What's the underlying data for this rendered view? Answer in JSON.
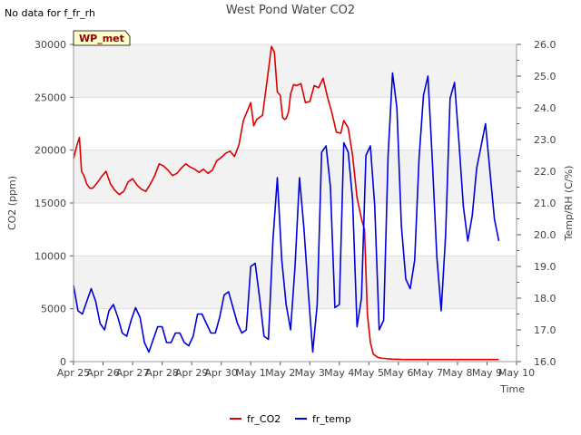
{
  "no_data_note": "No data for f_fr_rh",
  "station_badge": "WP_met",
  "chart_data": {
    "type": "line",
    "title": "West Pond Water CO2",
    "xlabel": "Time",
    "ylabel": "CO2 (ppm)",
    "y2label": "Temp/RH (C/%)",
    "xlim": [
      0,
      15
    ],
    "ylim": [
      0,
      30000
    ],
    "y2lim": [
      16.0,
      26.0
    ],
    "x_ticks": [
      {
        "value": 0,
        "label": "Apr 25"
      },
      {
        "value": 1,
        "label": "Apr 26"
      },
      {
        "value": 2,
        "label": "Apr 27"
      },
      {
        "value": 3,
        "label": "Apr 28"
      },
      {
        "value": 4,
        "label": "Apr 29"
      },
      {
        "value": 5,
        "label": "Apr 30"
      },
      {
        "value": 6,
        "label": "May 1"
      },
      {
        "value": 7,
        "label": "May 2"
      },
      {
        "value": 8,
        "label": "May 3"
      },
      {
        "value": 9,
        "label": "May 4"
      },
      {
        "value": 10,
        "label": "May 5"
      },
      {
        "value": 11,
        "label": "May 6"
      },
      {
        "value": 12,
        "label": "May 7"
      },
      {
        "value": 13,
        "label": "May 8"
      },
      {
        "value": 14,
        "label": "May 9"
      },
      {
        "value": 15,
        "label": "May 10"
      }
    ],
    "y_ticks": [
      {
        "value": 0,
        "label": "0"
      },
      {
        "value": 5000,
        "label": "5000"
      },
      {
        "value": 10000,
        "label": "10000"
      },
      {
        "value": 15000,
        "label": "15000"
      },
      {
        "value": 20000,
        "label": "20000"
      },
      {
        "value": 25000,
        "label": "25000"
      },
      {
        "value": 30000,
        "label": "30000"
      }
    ],
    "y2_ticks": [
      {
        "value": 16.0,
        "label": "16.0"
      },
      {
        "value": 17.0,
        "label": "17.0"
      },
      {
        "value": 18.0,
        "label": "18.0"
      },
      {
        "value": 19.0,
        "label": "19.0"
      },
      {
        "value": 20.0,
        "label": "20.0"
      },
      {
        "value": 21.0,
        "label": "21.0"
      },
      {
        "value": 22.0,
        "label": "22.0"
      },
      {
        "value": 23.0,
        "label": "23.0"
      },
      {
        "value": 24.0,
        "label": "24.0"
      },
      {
        "value": 25.0,
        "label": "25.0"
      },
      {
        "value": 26.0,
        "label": "26.0"
      }
    ],
    "series": [
      {
        "name": "fr_CO2",
        "color": "#dd0000",
        "axis": "left",
        "x": [
          0.0,
          0.12,
          0.2,
          0.27,
          0.35,
          0.45,
          0.55,
          0.65,
          0.8,
          0.95,
          1.1,
          1.25,
          1.4,
          1.55,
          1.7,
          1.85,
          2.0,
          2.15,
          2.3,
          2.45,
          2.6,
          2.75,
          2.9,
          3.05,
          3.2,
          3.35,
          3.5,
          3.65,
          3.8,
          3.95,
          4.1,
          4.25,
          4.4,
          4.55,
          4.7,
          4.85,
          5.0,
          5.15,
          5.3,
          5.45,
          5.6,
          5.75,
          5.9,
          6.0,
          6.1,
          6.2,
          6.3,
          6.4,
          6.55,
          6.7,
          6.8,
          6.9,
          7.0,
          7.08,
          7.15,
          7.2,
          7.28,
          7.35,
          7.45,
          7.55,
          7.7,
          7.85,
          8.0,
          8.15,
          8.3,
          8.45,
          8.6,
          8.75,
          8.9,
          9.05,
          9.15,
          9.3,
          9.45,
          9.6,
          9.75,
          9.85,
          9.95,
          10.05,
          10.15,
          10.3,
          10.45,
          10.55,
          10.65,
          10.72,
          10.8,
          10.9,
          11.0,
          11.1,
          11.3,
          11.6,
          12.0,
          12.5,
          13.0,
          13.5,
          14.0,
          14.4
        ],
        "values": [
          19200,
          20500,
          21200,
          18000,
          17600,
          16800,
          16400,
          16400,
          16900,
          17500,
          18000,
          16800,
          16200,
          15800,
          16100,
          17000,
          17300,
          16700,
          16300,
          16100,
          16800,
          17600,
          18700,
          18500,
          18100,
          17600,
          17800,
          18300,
          18700,
          18400,
          18200,
          17900,
          18200,
          17800,
          18100,
          19000,
          19300,
          19700,
          19900,
          19400,
          20500,
          22800,
          23800,
          24500,
          22300,
          22900,
          23100,
          23300,
          26500,
          29800,
          29300,
          25500,
          25200,
          23100,
          22900,
          23000,
          23600,
          25300,
          26200,
          26100,
          26300,
          24500,
          24600,
          26100,
          25900,
          26800,
          25000,
          23500,
          21700,
          21600,
          22800,
          22100,
          19500,
          15500,
          13500,
          12500,
          4500,
          1800,
          700,
          400,
          300,
          300,
          250,
          250,
          230,
          220,
          220,
          210,
          200,
          200,
          200,
          200,
          200,
          200,
          200,
          200
        ]
      },
      {
        "name": "fr_temp",
        "color": "#0000dd",
        "axis": "right",
        "x": [
          0.0,
          0.15,
          0.3,
          0.45,
          0.6,
          0.75,
          0.9,
          1.05,
          1.2,
          1.35,
          1.5,
          1.65,
          1.8,
          1.95,
          2.1,
          2.25,
          2.4,
          2.55,
          2.7,
          2.85,
          3.0,
          3.15,
          3.3,
          3.45,
          3.6,
          3.75,
          3.9,
          4.05,
          4.2,
          4.35,
          4.5,
          4.65,
          4.8,
          4.95,
          5.1,
          5.25,
          5.4,
          5.55,
          5.7,
          5.85,
          6.0,
          6.15,
          6.3,
          6.45,
          6.6,
          6.75,
          6.9,
          7.05,
          7.2,
          7.35,
          7.5,
          7.65,
          7.8,
          7.95,
          8.1,
          8.25,
          8.4,
          8.55,
          8.7,
          8.85,
          9.0,
          9.15,
          9.3,
          9.45,
          9.6,
          9.75,
          9.9,
          10.05,
          10.2,
          10.35,
          10.5,
          10.65,
          10.8,
          10.95,
          11.1,
          11.25,
          11.4,
          11.55,
          11.7,
          11.85,
          12.0,
          12.15,
          12.3,
          12.45,
          12.6,
          12.75,
          12.9,
          13.05,
          13.2,
          13.35,
          13.5,
          13.65,
          13.8,
          13.95,
          14.1,
          14.25,
          14.4
        ],
        "values": [
          18.4,
          17.6,
          17.5,
          17.9,
          18.3,
          17.9,
          17.2,
          17.0,
          17.6,
          17.8,
          17.4,
          16.9,
          16.8,
          17.3,
          17.7,
          17.4,
          16.6,
          16.3,
          16.7,
          17.1,
          17.1,
          16.6,
          16.6,
          16.9,
          16.9,
          16.6,
          16.5,
          16.8,
          17.5,
          17.5,
          17.2,
          16.9,
          16.9,
          17.4,
          18.1,
          18.2,
          17.7,
          17.2,
          16.9,
          17.0,
          19.0,
          19.1,
          18.0,
          16.8,
          16.7,
          19.8,
          21.8,
          19.2,
          17.8,
          17.0,
          19.0,
          21.8,
          20.2,
          18.2,
          16.3,
          17.8,
          22.6,
          22.8,
          21.5,
          17.7,
          17.8,
          22.9,
          22.6,
          21.1,
          17.1,
          18.0,
          22.5,
          22.8,
          20.9,
          17.0,
          17.3,
          22.5,
          25.1,
          24.0,
          20.3,
          18.6,
          18.3,
          19.2,
          22.4,
          24.4,
          25.0,
          22.3,
          19.3,
          17.6,
          20.0,
          24.3,
          24.8,
          22.9,
          20.9,
          19.8,
          20.6,
          22.1,
          22.8,
          23.5,
          22.0,
          20.5,
          19.8
        ]
      }
    ],
    "legend_position": "bottom-center"
  }
}
